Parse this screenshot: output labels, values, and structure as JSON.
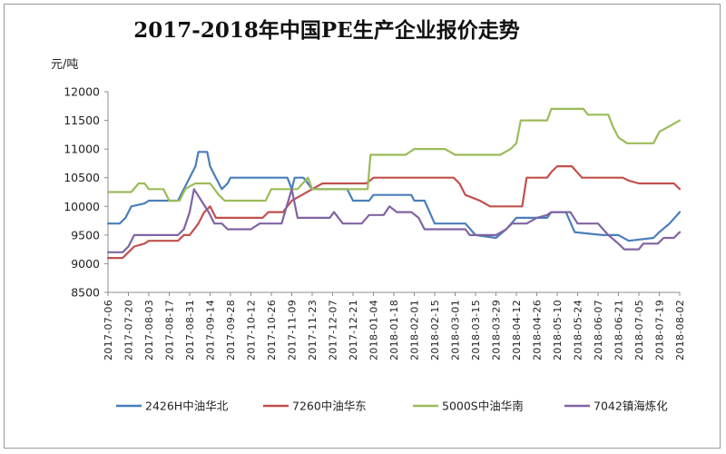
{
  "chart_data": {
    "type": "line",
    "title": "2017-2018年中国PE生产企业报价走势",
    "ylabel": "元/吨",
    "xlabel": "",
    "ylim": [
      8500,
      12000
    ],
    "yticks": [
      8500,
      9000,
      9500,
      10000,
      10500,
      11000,
      11500,
      12000
    ],
    "x_tick_labels": [
      "2017-07-06",
      "2017-07-20",
      "2017-08-03",
      "2017-08-17",
      "2017-08-31",
      "2017-09-14",
      "2017-09-28",
      "2017-10-12",
      "2017-10-26",
      "2017-11-09",
      "2017-11-23",
      "2017-12-07",
      "2017-12-21",
      "2018-01-04",
      "2018-01-18",
      "2018-02-01",
      "2018-02-15",
      "2018-03-01",
      "2018-03-15",
      "2018-03-29",
      "2018-04-12",
      "2018-04-26",
      "2018-05-10",
      "2018-05-24",
      "2018-06-07",
      "2018-06-21",
      "2018-07-05",
      "2018-07-19",
      "2018-08-02"
    ],
    "legend_position": "bottom",
    "grid": false,
    "series": [
      {
        "name": "2426H中油华北",
        "color": "#4a7ebb",
        "points": [
          [
            "2017-07-06",
            9700
          ],
          [
            "2017-07-14",
            9700
          ],
          [
            "2017-07-18",
            9800
          ],
          [
            "2017-07-22",
            10000
          ],
          [
            "2017-07-31",
            10050
          ],
          [
            "2017-08-03",
            10100
          ],
          [
            "2017-08-23",
            10100
          ],
          [
            "2017-08-27",
            10300
          ],
          [
            "2017-08-31",
            10500
          ],
          [
            "2017-09-04",
            10700
          ],
          [
            "2017-09-06",
            10950
          ],
          [
            "2017-09-12",
            10950
          ],
          [
            "2017-09-14",
            10700
          ],
          [
            "2017-09-18",
            10500
          ],
          [
            "2017-09-22",
            10300
          ],
          [
            "2017-09-26",
            10400
          ],
          [
            "2017-09-28",
            10500
          ],
          [
            "2017-11-06",
            10500
          ],
          [
            "2017-11-09",
            10300
          ],
          [
            "2017-11-11",
            10500
          ],
          [
            "2017-11-17",
            10500
          ],
          [
            "2017-11-23",
            10300
          ],
          [
            "2017-12-07",
            10300
          ],
          [
            "2017-12-17",
            10300
          ],
          [
            "2017-12-21",
            10100
          ],
          [
            "2018-01-01",
            10100
          ],
          [
            "2018-01-04",
            10200
          ],
          [
            "2018-01-30",
            10200
          ],
          [
            "2018-02-01",
            10100
          ],
          [
            "2018-02-08",
            10100
          ],
          [
            "2018-02-15",
            9700
          ],
          [
            "2018-03-08",
            9700
          ],
          [
            "2018-03-15",
            9500
          ],
          [
            "2018-03-29",
            9450
          ],
          [
            "2018-04-05",
            9600
          ],
          [
            "2018-04-12",
            9800
          ],
          [
            "2018-05-03",
            9800
          ],
          [
            "2018-05-06",
            9900
          ],
          [
            "2018-05-16",
            9900
          ],
          [
            "2018-05-22",
            9550
          ],
          [
            "2018-06-10",
            9500
          ],
          [
            "2018-06-21",
            9500
          ],
          [
            "2018-06-28",
            9400
          ],
          [
            "2018-07-15",
            9450
          ],
          [
            "2018-07-19",
            9550
          ],
          [
            "2018-07-26",
            9700
          ],
          [
            "2018-08-02",
            9900
          ]
        ]
      },
      {
        "name": "7260中油华东",
        "color": "#c0504d",
        "points": [
          [
            "2017-07-06",
            9100
          ],
          [
            "2017-07-16",
            9100
          ],
          [
            "2017-07-20",
            9200
          ],
          [
            "2017-07-24",
            9300
          ],
          [
            "2017-07-31",
            9350
          ],
          [
            "2017-08-03",
            9400
          ],
          [
            "2017-08-23",
            9400
          ],
          [
            "2017-08-27",
            9500
          ],
          [
            "2017-08-31",
            9500
          ],
          [
            "2017-09-06",
            9700
          ],
          [
            "2017-09-10",
            9900
          ],
          [
            "2017-09-14",
            10000
          ],
          [
            "2017-09-18",
            9800
          ],
          [
            "2017-10-20",
            9800
          ],
          [
            "2017-10-24",
            9900
          ],
          [
            "2017-11-03",
            9900
          ],
          [
            "2017-11-09",
            10100
          ],
          [
            "2017-11-16",
            10200
          ],
          [
            "2017-11-23",
            10300
          ],
          [
            "2017-11-30",
            10400
          ],
          [
            "2017-12-30",
            10400
          ],
          [
            "2018-01-04",
            10500
          ],
          [
            "2018-02-28",
            10500
          ],
          [
            "2018-03-04",
            10400
          ],
          [
            "2018-03-08",
            10200
          ],
          [
            "2018-03-18",
            10100
          ],
          [
            "2018-03-25",
            10000
          ],
          [
            "2018-04-16",
            10000
          ],
          [
            "2018-04-19",
            10500
          ],
          [
            "2018-05-03",
            10500
          ],
          [
            "2018-05-06",
            10600
          ],
          [
            "2018-05-10",
            10700
          ],
          [
            "2018-05-20",
            10700
          ],
          [
            "2018-05-27",
            10500
          ],
          [
            "2018-06-24",
            10500
          ],
          [
            "2018-06-28",
            10450
          ],
          [
            "2018-07-05",
            10400
          ],
          [
            "2018-07-29",
            10400
          ],
          [
            "2018-08-02",
            10300
          ]
        ]
      },
      {
        "name": "5000S中油华南",
        "color": "#9bbb59",
        "points": [
          [
            "2017-07-06",
            10250
          ],
          [
            "2017-07-22",
            10250
          ],
          [
            "2017-07-27",
            10400
          ],
          [
            "2017-07-31",
            10400
          ],
          [
            "2017-08-03",
            10300
          ],
          [
            "2017-08-13",
            10300
          ],
          [
            "2017-08-17",
            10100
          ],
          [
            "2017-08-24",
            10100
          ],
          [
            "2017-08-28",
            10300
          ],
          [
            "2017-08-31",
            10350
          ],
          [
            "2017-09-04",
            10400
          ],
          [
            "2017-09-14",
            10400
          ],
          [
            "2017-09-20",
            10200
          ],
          [
            "2017-09-24",
            10100
          ],
          [
            "2017-10-22",
            10100
          ],
          [
            "2017-10-26",
            10300
          ],
          [
            "2017-11-13",
            10300
          ],
          [
            "2017-11-20",
            10500
          ],
          [
            "2017-11-23",
            10300
          ],
          [
            "2017-12-31",
            10300
          ],
          [
            "2018-01-02",
            10900
          ],
          [
            "2018-01-26",
            10900
          ],
          [
            "2018-02-01",
            11000
          ],
          [
            "2018-02-22",
            11000
          ],
          [
            "2018-03-01",
            10900
          ],
          [
            "2018-04-01",
            10900
          ],
          [
            "2018-04-08",
            11000
          ],
          [
            "2018-04-12",
            11100
          ],
          [
            "2018-04-15",
            11500
          ],
          [
            "2018-04-26",
            11500
          ],
          [
            "2018-05-03",
            11500
          ],
          [
            "2018-05-06",
            11700
          ],
          [
            "2018-05-28",
            11700
          ],
          [
            "2018-05-31",
            11600
          ],
          [
            "2018-06-14",
            11600
          ],
          [
            "2018-06-17",
            11400
          ],
          [
            "2018-06-21",
            11200
          ],
          [
            "2018-06-27",
            11100
          ],
          [
            "2018-07-15",
            11100
          ],
          [
            "2018-07-19",
            11300
          ],
          [
            "2018-07-26",
            11400
          ],
          [
            "2018-08-02",
            11500
          ]
        ]
      },
      {
        "name": "7042镇海炼化",
        "color": "#8064a2",
        "points": [
          [
            "2017-07-06",
            9200
          ],
          [
            "2017-07-16",
            9200
          ],
          [
            "2017-07-20",
            9300
          ],
          [
            "2017-07-24",
            9500
          ],
          [
            "2017-08-23",
            9500
          ],
          [
            "2017-08-27",
            9600
          ],
          [
            "2017-08-31",
            9900
          ],
          [
            "2017-09-03",
            10300
          ],
          [
            "2017-09-08",
            10100
          ],
          [
            "2017-09-13",
            9900
          ],
          [
            "2017-09-17",
            9700
          ],
          [
            "2017-09-22",
            9700
          ],
          [
            "2017-09-26",
            9600
          ],
          [
            "2017-10-12",
            9600
          ],
          [
            "2017-10-18",
            9700
          ],
          [
            "2017-11-02",
            9700
          ],
          [
            "2017-11-09",
            10300
          ],
          [
            "2017-11-13",
            9800
          ],
          [
            "2017-12-05",
            9800
          ],
          [
            "2017-12-08",
            9900
          ],
          [
            "2017-12-11",
            9800
          ],
          [
            "2017-12-14",
            9700
          ],
          [
            "2017-12-27",
            9700
          ],
          [
            "2018-01-01",
            9850
          ],
          [
            "2018-01-11",
            9850
          ],
          [
            "2018-01-15",
            10000
          ],
          [
            "2018-01-20",
            9900
          ],
          [
            "2018-01-30",
            9900
          ],
          [
            "2018-02-04",
            9800
          ],
          [
            "2018-02-08",
            9600
          ],
          [
            "2018-03-08",
            9600
          ],
          [
            "2018-03-11",
            9500
          ],
          [
            "2018-03-29",
            9500
          ],
          [
            "2018-04-05",
            9600
          ],
          [
            "2018-04-09",
            9700
          ],
          [
            "2018-04-19",
            9700
          ],
          [
            "2018-04-26",
            9800
          ],
          [
            "2018-05-03",
            9850
          ],
          [
            "2018-05-06",
            9900
          ],
          [
            "2018-05-19",
            9900
          ],
          [
            "2018-05-24",
            9700
          ],
          [
            "2018-06-07",
            9700
          ],
          [
            "2018-06-14",
            9500
          ],
          [
            "2018-06-21",
            9350
          ],
          [
            "2018-06-25",
            9250
          ],
          [
            "2018-07-05",
            9250
          ],
          [
            "2018-07-08",
            9350
          ],
          [
            "2018-07-18",
            9350
          ],
          [
            "2018-07-22",
            9450
          ],
          [
            "2018-07-29",
            9450
          ],
          [
            "2018-08-02",
            9550
          ]
        ]
      }
    ]
  }
}
